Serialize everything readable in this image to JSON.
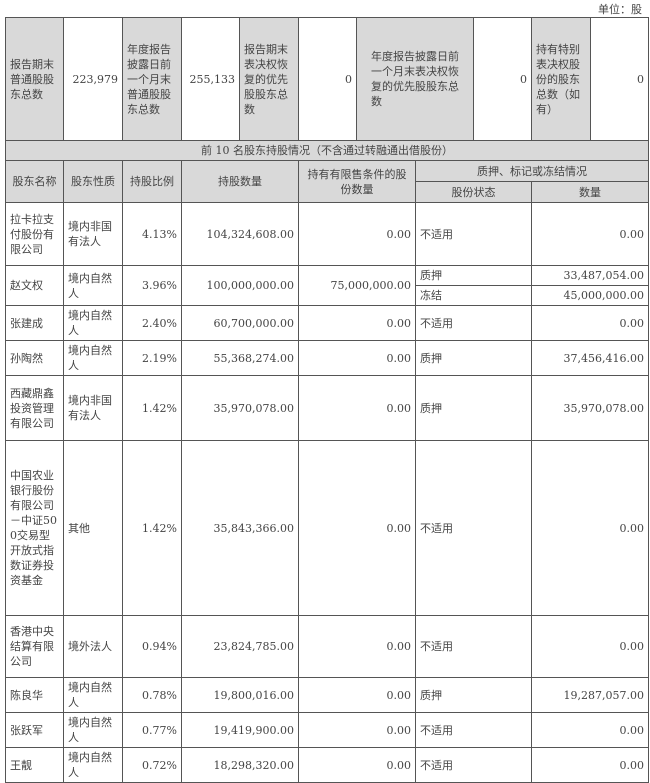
{
  "unit_label": "单位：股",
  "summary": {
    "cells": [
      {
        "label": "报告期末普通股股东总数",
        "value": "223,979"
      },
      {
        "label": "年度报告披露日前一个月末普通股股东总数",
        "value": "255,133"
      },
      {
        "label": "报告期末表决权恢复的优先股股东总数",
        "value": "0"
      },
      {
        "label": "年度报告披露日前一个月末表决权恢复的优先股股东总数",
        "value": "0"
      },
      {
        "label": "持有特别表决权股份的股东总数（如有）",
        "value": "0"
      }
    ]
  },
  "section_title": "前 10 名股东持股情况（不含通过转融通出借股份）",
  "headers": {
    "name": "股东名称",
    "nature": "股东性质",
    "ratio": "持股比例",
    "shares": "持股数量",
    "restricted": "持有有限售条件的股份数量",
    "pledge_group": "质押、标记或冻结情况",
    "status": "股份状态",
    "quantity": "数量"
  },
  "rows": [
    {
      "name": "拉卡拉支付股份有限公司",
      "nature": "境内非国有法人",
      "ratio": "4.13%",
      "shares": "104,324,608.00",
      "restricted": "0.00",
      "pledges": [
        {
          "status": "不适用",
          "quantity": "0.00"
        }
      ]
    },
    {
      "name": "赵文权",
      "nature": "境内自然人",
      "ratio": "3.96%",
      "shares": "100,000,000.00",
      "restricted": "75,000,000.00",
      "pledges": [
        {
          "status": "质押",
          "quantity": "33,487,054.00"
        },
        {
          "status": "冻结",
          "quantity": "45,000,000.00"
        }
      ]
    },
    {
      "name": "张建成",
      "nature": "境内自然人",
      "ratio": "2.40%",
      "shares": "60,700,000.00",
      "restricted": "0.00",
      "pledges": [
        {
          "status": "不适用",
          "quantity": "0.00"
        }
      ]
    },
    {
      "name": "孙陶然",
      "nature": "境内自然人",
      "ratio": "2.19%",
      "shares": "55,368,274.00",
      "restricted": "0.00",
      "pledges": [
        {
          "status": "质押",
          "quantity": "37,456,416.00"
        }
      ]
    },
    {
      "name": "西藏鼎鑫投资管理有限公司",
      "nature": "境内非国有法人",
      "ratio": "1.42%",
      "shares": "35,970,078.00",
      "restricted": "0.00",
      "pledges": [
        {
          "status": "质押",
          "quantity": "35,970,078.00"
        }
      ]
    },
    {
      "name": "中国农业银行股份有限公司－中证500交易型开放式指数证券投资基金",
      "nature": "其他",
      "ratio": "1.42%",
      "shares": "35,843,366.00",
      "restricted": "0.00",
      "pledges": [
        {
          "status": "不适用",
          "quantity": "0.00"
        }
      ]
    },
    {
      "name": "香港中央结算有限公司",
      "nature": "境外法人",
      "ratio": "0.94%",
      "shares": "23,824,785.00",
      "restricted": "0.00",
      "pledges": [
        {
          "status": "不适用",
          "quantity": "0.00"
        }
      ]
    },
    {
      "name": "陈良华",
      "nature": "境内自然人",
      "ratio": "0.78%",
      "shares": "19,800,016.00",
      "restricted": "0.00",
      "pledges": [
        {
          "status": "质押",
          "quantity": "19,287,057.00"
        }
      ]
    },
    {
      "name": "张跃军",
      "nature": "境内自然人",
      "ratio": "0.77%",
      "shares": "19,419,900.00",
      "restricted": "0.00",
      "pledges": [
        {
          "status": "不适用",
          "quantity": "0.00"
        }
      ]
    },
    {
      "name": "王靓",
      "nature": "境内自然人",
      "ratio": "0.72%",
      "shares": "18,298,320.00",
      "restricted": "0.00",
      "pledges": [
        {
          "status": "不适用",
          "quantity": "0.00"
        }
      ]
    }
  ]
}
